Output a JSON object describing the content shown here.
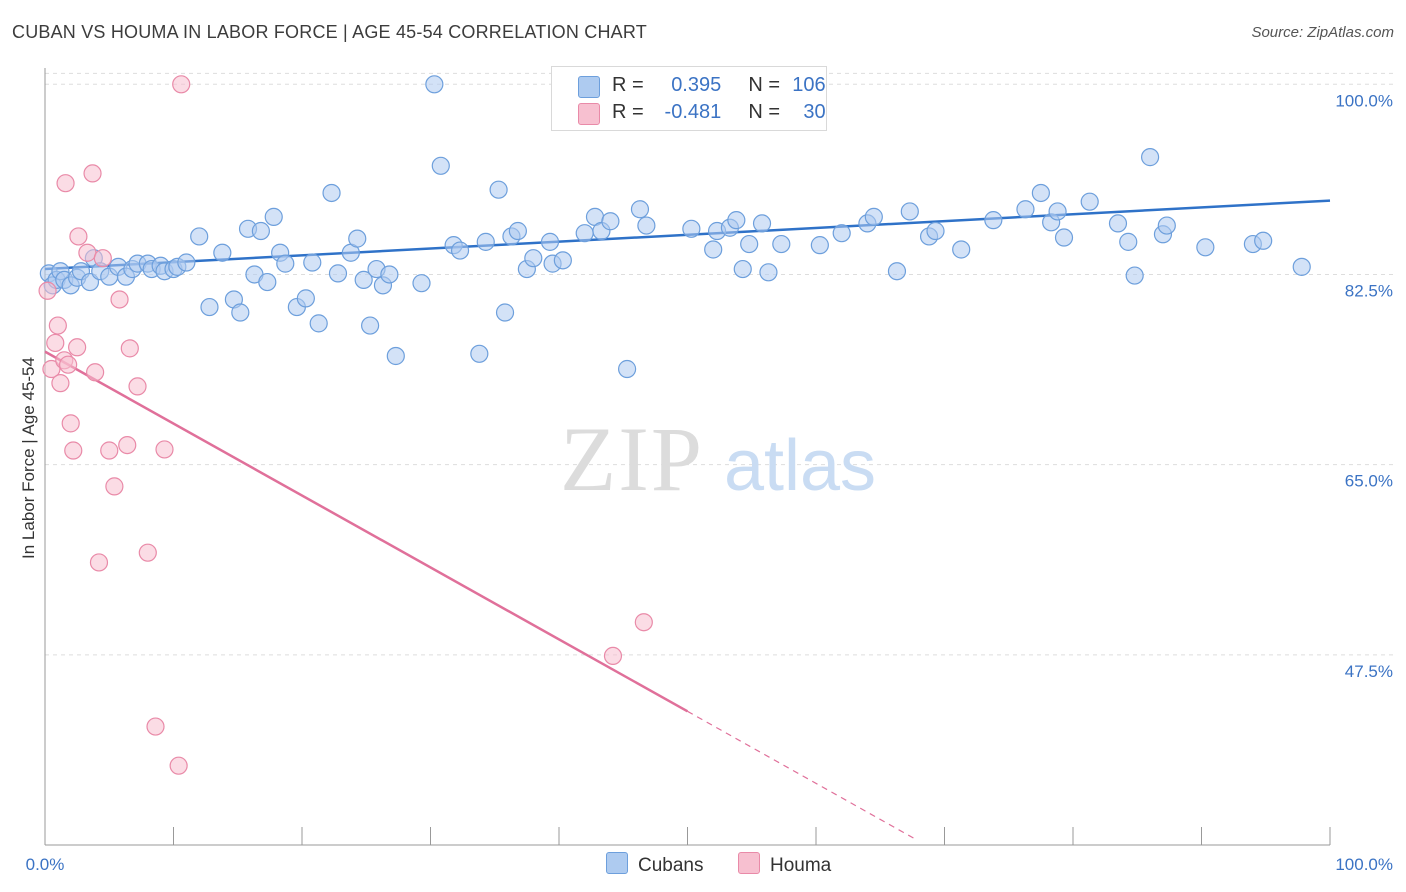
{
  "title": "CUBAN VS HOUMA IN LABOR FORCE | AGE 45-54 CORRELATION CHART",
  "source": "Source: ZipAtlas.com",
  "watermark": {
    "zip": "ZIP",
    "atlas": "atlas"
  },
  "colors": {
    "cubans_fill": "#aecbf0",
    "cubans_stroke": "#6d9fdc",
    "cubans_line": "#2f72c8",
    "houma_fill": "#f7c0d0",
    "houma_stroke": "#e98aa8",
    "houma_line": "#e0709a",
    "axis_label_blue": "#3b73c4",
    "grid": "#dddddd"
  },
  "legend": {
    "rows": [
      {
        "r_label": "R =",
        "r_value": "0.395",
        "n_label": "N =",
        "n_value": "106"
      },
      {
        "r_label": "R =",
        "r_value": "-0.481",
        "n_label": "N =",
        "n_value": "30"
      }
    ]
  },
  "bottom_legend": {
    "cubans": "Cubans",
    "houma": "Houma"
  },
  "chart_data": {
    "type": "scatter",
    "title": "CUBAN VS HOUMA IN LABOR FORCE | AGE 45-54 CORRELATION CHART",
    "xlabel": "",
    "ylabel": "In Labor Force | Age 45-54",
    "xlim": [
      0,
      100
    ],
    "ylim": [
      30,
      101.5
    ],
    "x_tick_labels": [
      "0.0%",
      "100.0%"
    ],
    "y_ticks": [
      47.5,
      65.0,
      82.5,
      100.0
    ],
    "y_tick_labels": [
      "47.5%",
      "65.0%",
      "82.5%",
      "100.0%"
    ],
    "grid": "horizontal dashed",
    "legend_position": "top-center",
    "series": [
      {
        "name": "Cubans",
        "r": 0.395,
        "n": 106,
        "trend": {
          "x": [
            0,
            100
          ],
          "y": [
            83.0,
            89.3
          ]
        },
        "points": [
          [
            0.3,
            82.6
          ],
          [
            0.6,
            81.5
          ],
          [
            0.9,
            82.0
          ],
          [
            1.2,
            82.8
          ],
          [
            1.5,
            82.0
          ],
          [
            2.0,
            81.5
          ],
          [
            2.5,
            82.2
          ],
          [
            2.8,
            82.8
          ],
          [
            3.5,
            81.8
          ],
          [
            3.8,
            84.0
          ],
          [
            4.3,
            82.8
          ],
          [
            5.0,
            82.3
          ],
          [
            5.7,
            83.2
          ],
          [
            6.3,
            82.3
          ],
          [
            6.8,
            83.0
          ],
          [
            7.2,
            83.5
          ],
          [
            8.0,
            83.5
          ],
          [
            8.3,
            83.0
          ],
          [
            9.0,
            83.3
          ],
          [
            9.3,
            82.8
          ],
          [
            10.0,
            83.0
          ],
          [
            10.3,
            83.2
          ],
          [
            11.0,
            83.6
          ],
          [
            12.0,
            86.0
          ],
          [
            12.8,
            79.5
          ],
          [
            13.8,
            84.5
          ],
          [
            14.7,
            80.2
          ],
          [
            15.2,
            79.0
          ],
          [
            15.8,
            86.7
          ],
          [
            16.3,
            82.5
          ],
          [
            16.8,
            86.5
          ],
          [
            17.3,
            81.8
          ],
          [
            17.8,
            87.8
          ],
          [
            18.3,
            84.5
          ],
          [
            18.7,
            83.5
          ],
          [
            19.6,
            79.5
          ],
          [
            20.3,
            80.3
          ],
          [
            20.8,
            83.6
          ],
          [
            21.3,
            78.0
          ],
          [
            22.3,
            90.0
          ],
          [
            22.8,
            82.6
          ],
          [
            23.8,
            84.5
          ],
          [
            24.3,
            85.8
          ],
          [
            24.8,
            82.0
          ],
          [
            25.3,
            77.8
          ],
          [
            25.8,
            83.0
          ],
          [
            26.3,
            81.5
          ],
          [
            26.8,
            82.5
          ],
          [
            27.3,
            75.0
          ],
          [
            29.3,
            81.7
          ],
          [
            30.3,
            100.0
          ],
          [
            30.8,
            92.5
          ],
          [
            31.8,
            85.2
          ],
          [
            32.3,
            84.7
          ],
          [
            33.8,
            75.2
          ],
          [
            34.3,
            85.5
          ],
          [
            35.3,
            90.3
          ],
          [
            35.8,
            79.0
          ],
          [
            36.3,
            86.0
          ],
          [
            36.8,
            86.5
          ],
          [
            37.5,
            83.0
          ],
          [
            38.0,
            84.0
          ],
          [
            39.3,
            85.5
          ],
          [
            39.5,
            83.5
          ],
          [
            40.3,
            83.8
          ],
          [
            42.0,
            86.3
          ],
          [
            42.8,
            87.8
          ],
          [
            43.3,
            86.5
          ],
          [
            44.0,
            87.4
          ],
          [
            45.3,
            73.8
          ],
          [
            46.3,
            88.5
          ],
          [
            46.8,
            87.0
          ],
          [
            50.3,
            86.7
          ],
          [
            52.0,
            84.8
          ],
          [
            52.3,
            86.5
          ],
          [
            53.3,
            86.8
          ],
          [
            53.8,
            87.5
          ],
          [
            54.3,
            83.0
          ],
          [
            54.8,
            85.3
          ],
          [
            55.8,
            87.2
          ],
          [
            56.3,
            82.7
          ],
          [
            57.3,
            85.3
          ],
          [
            60.3,
            85.2
          ],
          [
            62.0,
            86.3
          ],
          [
            64.0,
            87.2
          ],
          [
            64.5,
            87.8
          ],
          [
            66.3,
            82.8
          ],
          [
            67.3,
            88.3
          ],
          [
            68.8,
            86.0
          ],
          [
            69.3,
            86.5
          ],
          [
            71.3,
            84.8
          ],
          [
            73.8,
            87.5
          ],
          [
            76.3,
            88.5
          ],
          [
            77.5,
            90.0
          ],
          [
            78.3,
            87.3
          ],
          [
            78.8,
            88.3
          ],
          [
            79.3,
            85.9
          ],
          [
            81.3,
            89.2
          ],
          [
            83.5,
            87.2
          ],
          [
            84.3,
            85.5
          ],
          [
            84.8,
            82.4
          ],
          [
            86.0,
            93.3
          ],
          [
            87.0,
            86.2
          ],
          [
            87.3,
            87.0
          ],
          [
            90.3,
            85.0
          ],
          [
            94.0,
            85.3
          ],
          [
            94.8,
            85.6
          ],
          [
            97.8,
            83.2
          ]
        ]
      },
      {
        "name": "Houma",
        "r": -0.481,
        "n": 30,
        "trend": {
          "x": [
            0,
            50
          ],
          "y": [
            75.4,
            42.3
          ]
        },
        "trend_dashed": {
          "x": [
            50,
            67.8
          ],
          "y": [
            42.3,
            30.5
          ]
        },
        "points": [
          [
            0.2,
            81.0
          ],
          [
            0.5,
            73.8
          ],
          [
            0.8,
            76.2
          ],
          [
            1.0,
            77.8
          ],
          [
            1.2,
            72.5
          ],
          [
            1.5,
            74.6
          ],
          [
            1.6,
            90.9
          ],
          [
            1.8,
            74.2
          ],
          [
            2.0,
            68.8
          ],
          [
            2.2,
            66.3
          ],
          [
            2.5,
            75.8
          ],
          [
            2.6,
            86.0
          ],
          [
            3.3,
            84.5
          ],
          [
            3.7,
            91.8
          ],
          [
            3.9,
            73.5
          ],
          [
            4.2,
            56.0
          ],
          [
            4.5,
            84.0
          ],
          [
            5.0,
            66.3
          ],
          [
            5.4,
            63.0
          ],
          [
            5.8,
            80.2
          ],
          [
            6.4,
            66.8
          ],
          [
            6.6,
            75.7
          ],
          [
            7.2,
            72.2
          ],
          [
            8.0,
            56.9
          ],
          [
            8.6,
            40.9
          ],
          [
            9.3,
            66.4
          ],
          [
            10.4,
            37.3
          ],
          [
            10.6,
            100.0
          ],
          [
            44.2,
            47.4
          ],
          [
            46.6,
            50.5
          ]
        ]
      }
    ]
  }
}
